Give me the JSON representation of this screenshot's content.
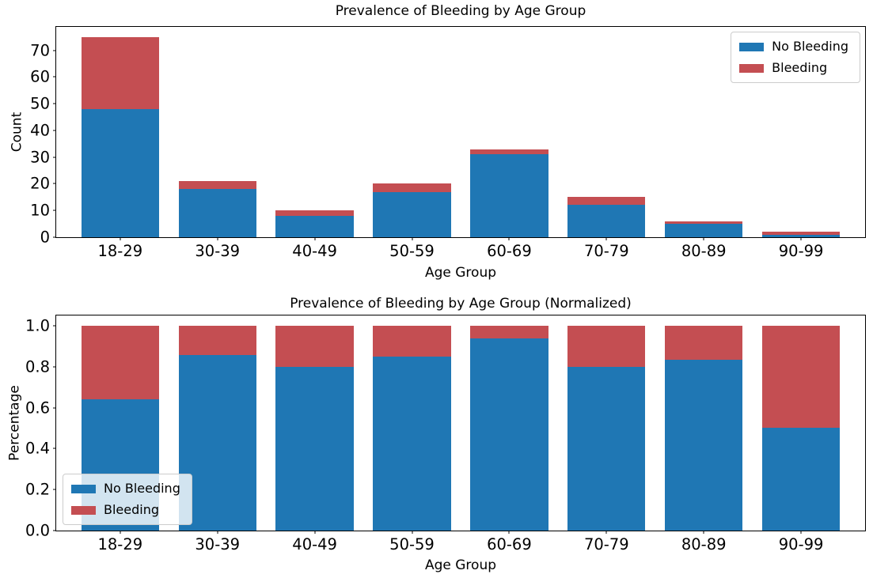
{
  "figure": {
    "background": "#ffffff",
    "text_color": "#000000",
    "spine_color": "#000000",
    "legend_border_color": "#cccccc",
    "accent_blue": "#1f77b4",
    "accent_red": "#c44e52"
  },
  "chart_data": [
    {
      "type": "bar",
      "stacked": true,
      "title": "Prevalence of Bleeding by Age Group",
      "xlabel": "Age Group",
      "ylabel": "Count",
      "categories": [
        "18-29",
        "30-39",
        "40-49",
        "50-59",
        "60-69",
        "70-79",
        "80-89",
        "90-99"
      ],
      "series": [
        {
          "name": "No Bleeding",
          "color": "#1f77b4",
          "values": [
            48,
            18,
            8,
            17,
            31,
            12,
            5,
            1
          ]
        },
        {
          "name": "Bleeding",
          "color": "#c44e52",
          "values": [
            27,
            3,
            2,
            3,
            2,
            3,
            1,
            1
          ]
        }
      ],
      "stack_totals": [
        75,
        21,
        10,
        20,
        33,
        15,
        6,
        2
      ],
      "ylim": [
        0,
        78.75
      ],
      "yticks": {
        "labels": [
          "0",
          "10",
          "20",
          "30",
          "40",
          "50",
          "60",
          "70"
        ],
        "values": [
          0,
          10,
          20,
          30,
          40,
          50,
          60,
          70
        ]
      },
      "grid": false,
      "legend_position": "top-right"
    },
    {
      "type": "bar",
      "stacked": true,
      "title": "Prevalence of Bleeding by Age Group (Normalized)",
      "xlabel": "Age Group",
      "ylabel": "Percentage",
      "categories": [
        "18-29",
        "30-39",
        "40-49",
        "50-59",
        "60-69",
        "70-79",
        "80-89",
        "90-99"
      ],
      "series": [
        {
          "name": "No Bleeding",
          "color": "#1f77b4",
          "values": [
            0.64,
            0.857,
            0.8,
            0.85,
            0.939,
            0.8,
            0.833,
            0.5
          ]
        },
        {
          "name": "Bleeding",
          "color": "#c44e52",
          "values": [
            0.36,
            0.143,
            0.2,
            0.15,
            0.061,
            0.2,
            0.167,
            0.5
          ]
        }
      ],
      "stack_totals": [
        1.0,
        1.0,
        1.0,
        1.0,
        1.0,
        1.0,
        1.0,
        1.0
      ],
      "ylim": [
        0,
        1.05
      ],
      "yticks": {
        "labels": [
          "0.0",
          "0.2",
          "0.4",
          "0.6",
          "0.8",
          "1.0"
        ],
        "values": [
          0,
          0.2,
          0.4,
          0.6,
          0.8,
          1.0
        ]
      },
      "grid": false,
      "legend_position": "bottom-left"
    }
  ]
}
